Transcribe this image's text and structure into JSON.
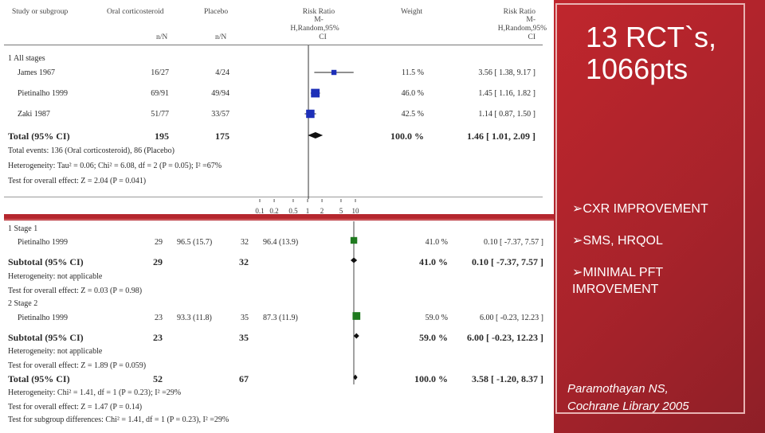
{
  "forest_plot_1": {
    "headers": {
      "study": "Study or subgroup",
      "treatment": "Oral corticosteroid",
      "treatment_sub": "n/N",
      "control": "Placebo",
      "control_sub": "n/N",
      "rr_line1": "Risk Ratio",
      "rr_line2": "M-",
      "rr_line3": "H,Random,95%",
      "rr_line4": "CI",
      "weight": "Weight",
      "rr2_line1": "Risk Ratio",
      "rr2_line2": "M-",
      "rr2_line3": "H,Random,95%",
      "rr2_line4": "CI"
    },
    "group_label": "1 All stages",
    "total_label": "Total (95% CI)",
    "total_treatment": "195",
    "total_control": "175",
    "total_weight": "100.0 %",
    "total_ci": "1.46 [ 1.01, 2.09 ]",
    "total_events": "Total events: 136 (Oral corticosteroid), 86 (Placebo)",
    "heterogeneity": "Heterogeneity: Tau² = 0.06; Chi² = 6.08, df = 2 (P = 0.05); I² =67%",
    "overall_effect": "Test for overall effect: Z = 2.04 (P = 0.041)",
    "axis_ticks": [
      "0.1",
      "0.2",
      "0.5",
      "1",
      "2",
      "5",
      "10"
    ]
  },
  "forest_plot_2": {
    "stage1_label": "1 Stage 1",
    "stage1_subtotal_label": "Subtotal (95% CI)",
    "stage1_subtotal_treatment": "29",
    "stage1_subtotal_control": "32",
    "stage1_subtotal_weight": "41.0 %",
    "stage1_subtotal_ci": "0.10 [ -7.37, 7.57 ]",
    "stage1_heterogeneity": "Heterogeneity: not applicable",
    "stage1_effect": "Test for overall effect: Z = 0.03 (P = 0.98)",
    "stage2_label": "2 Stage 2",
    "stage2_subtotal_label": "Subtotal (95% CI)",
    "stage2_subtotal_treatment": "23",
    "stage2_subtotal_control": "35",
    "stage2_subtotal_weight": "59.0 %",
    "stage2_subtotal_ci": "6.00 [ -0.23, 12.23 ]",
    "stage2_heterogeneity": "Heterogeneity: not applicable",
    "stage2_effect": "Test for overall effect: Z = 1.89 (P = 0.059)",
    "total_label": "Total (95% CI)",
    "total_treatment": "52",
    "total_control": "67",
    "total_weight": "100.0 %",
    "total_ci": "3.58 [ -1.20, 8.37 ]",
    "total_heterogeneity": "Heterogeneity: Chi² = 1.41, df = 1 (P = 0.23); I² =29%",
    "total_effect": "Test for overall effect: Z = 1.47 (P = 0.14)",
    "subgroup_diff": "Test for subgroup differences: Chi² = 1.41, df = 1 (P = 0.23), I² =29%"
  },
  "chart_data": [
    {
      "type": "forest",
      "scale": "log",
      "xlim": [
        0.1,
        10
      ],
      "x_ticks": [
        0.1,
        0.2,
        0.5,
        1,
        2,
        5,
        10
      ],
      "studies": [
        {
          "name": "James 1967",
          "treatment": "16/27",
          "control": "4/24",
          "weight": "11.5 %",
          "ci_text": "3.56 [ 1.38, 9.17 ]",
          "rr": 3.56,
          "lower": 1.38,
          "upper": 9.17,
          "weight_pct": 11.5
        },
        {
          "name": "Pietinalho 1999",
          "treatment": "69/91",
          "control": "49/94",
          "weight": "46.0 %",
          "ci_text": "1.45 [ 1.16, 1.82 ]",
          "rr": 1.45,
          "lower": 1.16,
          "upper": 1.82,
          "weight_pct": 46.0
        },
        {
          "name": "Zaki 1987",
          "treatment": "51/77",
          "control": "33/57",
          "weight": "42.5 %",
          "ci_text": "1.14 [ 0.87, 1.50 ]",
          "rr": 1.14,
          "lower": 0.87,
          "upper": 1.5,
          "weight_pct": 42.5
        }
      ],
      "total": {
        "rr": 1.46,
        "lower": 1.01,
        "upper": 2.09
      }
    },
    {
      "type": "forest",
      "scale": "linear",
      "studies": [
        {
          "name": "Pietinalho 1999",
          "n1": "29",
          "mean_sd1": "96.5 (15.7)",
          "n2": "32",
          "mean_sd2": "96.4 (13.9)",
          "weight": "41.0 %",
          "ci_text": "0.10 [ -7.37, 7.57 ]",
          "md": 0.1,
          "lower": -7.37,
          "upper": 7.57,
          "weight_pct": 41.0
        },
        {
          "name": "Pietinalho 1999",
          "n1": "23",
          "mean_sd1": "93.3 (11.8)",
          "n2": "35",
          "mean_sd2": "87.3 (11.9)",
          "weight": "59.0 %",
          "ci_text": "6.00 [ -0.23, 12.23 ]",
          "md": 6.0,
          "lower": -0.23,
          "upper": 12.23,
          "weight_pct": 59.0
        }
      ],
      "subtotals": [
        {
          "md": 0.1,
          "lower": -7.37,
          "upper": 7.57
        },
        {
          "md": 6.0,
          "lower": -0.23,
          "upper": 12.23
        }
      ],
      "total": {
        "md": 3.58,
        "lower": -1.2,
        "upper": 8.37
      }
    }
  ],
  "panel": {
    "title": "13 RCT`s, 1066pts",
    "bullets": [
      "➢CXR IMPROVEMENT",
      "➢SMS, HRQOL",
      "➢MINIMAL PFT IMROVEMENT"
    ],
    "citation_line1": "Paramothayan NS,",
    "citation_line2": "Cochrane Library 2005"
  },
  "colors": {
    "panel_red": "#b5272e",
    "blue_marker": "#1d2fb8",
    "green_marker": "#1f7a1f"
  }
}
